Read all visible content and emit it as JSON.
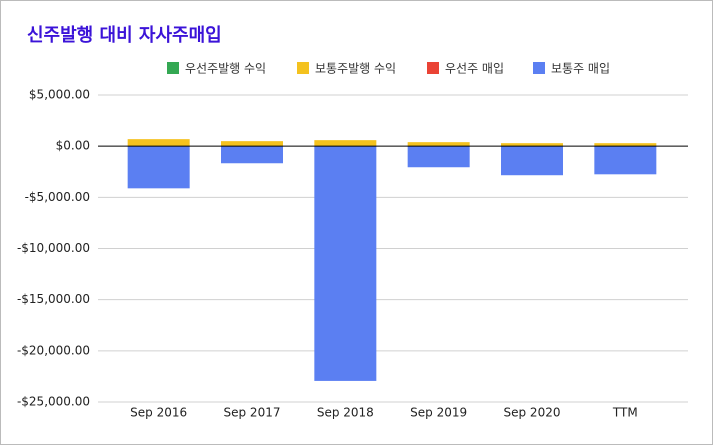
{
  "chart_data": {
    "type": "bar",
    "stacked": true,
    "title": "신주발행 대비 자사주매입",
    "categories": [
      "Sep 2016",
      "Sep 2017",
      "Sep 2018",
      "Sep 2019",
      "Sep 2020",
      "TTM"
    ],
    "series": [
      {
        "name": "우선주발행 수익",
        "color": "#34a853",
        "values": [
          0,
          0,
          0,
          0,
          0,
          0
        ]
      },
      {
        "name": "보통주발행 수익",
        "color": "#f4c21f",
        "values": [
          686,
          490,
          588,
          392,
          294,
          294
        ]
      },
      {
        "name": "우선주 매입",
        "color": "#ea4335",
        "values": [
          0,
          0,
          0,
          0,
          0,
          0
        ]
      },
      {
        "name": "보통주 매입",
        "color": "#5b7ff2",
        "values": [
          -4120,
          -1670,
          -22940,
          -2060,
          -2840,
          -2750
        ]
      }
    ],
    "ylim": [
      -25000,
      5000
    ],
    "yticks": [
      {
        "value": -25000,
        "label": "-$25,000.00"
      },
      {
        "value": -20000,
        "label": "-$20,000.00"
      },
      {
        "value": -15000,
        "label": "-$15,000.00"
      },
      {
        "value": -10000,
        "label": "-$10,000.00"
      },
      {
        "value": -5000,
        "label": "-$5,000.00"
      },
      {
        "value": 0,
        "label": "$0.00"
      },
      {
        "value": 5000,
        "label": "$5,000.00"
      }
    ],
    "grid": true,
    "legend": "top"
  }
}
